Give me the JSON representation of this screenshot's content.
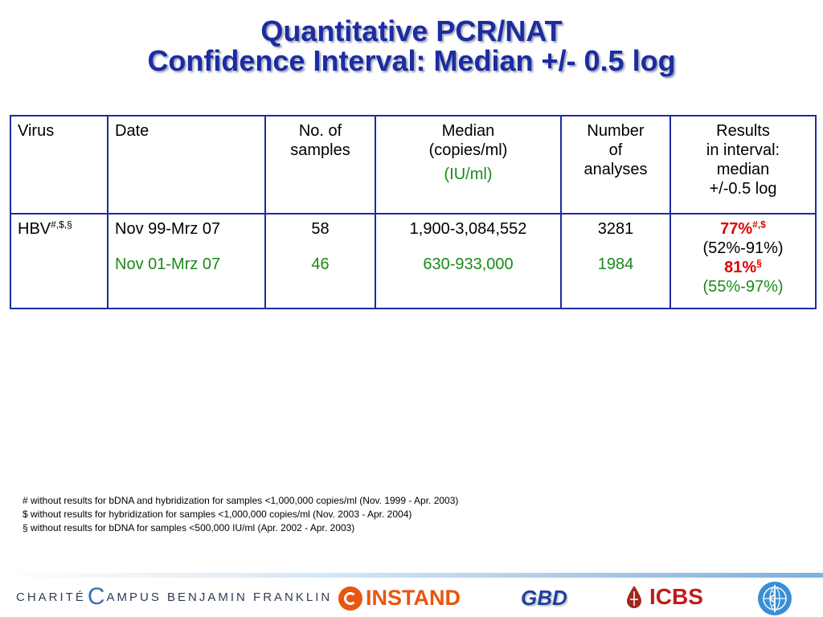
{
  "title": {
    "line1": "Quantitative PCR/NAT",
    "line2": "Confidence Interval: Median +/- 0.5 log"
  },
  "table": {
    "headers": {
      "virus": "Virus",
      "date": "Date",
      "samples": [
        "No. of",
        "samples"
      ],
      "median": [
        "Median",
        "(copies/ml)"
      ],
      "median_iu": "(IU/ml)",
      "analyses": [
        "Number",
        "of",
        "analyses"
      ],
      "results": [
        "Results",
        "in interval:",
        "median",
        "+/-0.5 log"
      ]
    },
    "row": {
      "virus": "HBV",
      "virus_sup": "#,$,§",
      "date_1": "Nov 99-Mrz 07",
      "date_2": "Nov 01-Mrz 07",
      "samples_1": "58",
      "samples_2": "46",
      "median_1": "1,900-3,084,552",
      "median_2": "630-933,000",
      "analyses_1": "3281",
      "analyses_2": "1984",
      "result_1": "77%",
      "result_1_sup": "#,$",
      "result_1_ci": "(52%-91%)",
      "result_2": "81%",
      "result_2_sup": "§",
      "result_2_ci": "(55%-97%)"
    }
  },
  "footnotes": [
    "# without results for bDNA and hybridization for samples <1,000,000 copies/ml (Nov. 1999 - Apr. 2003)",
    "$ without results for hybridization for samples <1,000,000 copies/ml (Nov. 2003 - Apr. 2004)",
    "§ without results for bDNA for samples <500,000 IU/ml (Apr. 2002 - Apr. 2003)"
  ],
  "logos": {
    "charite_1": "CHARITÉ",
    "charite_2": "AMPUS BENJAMIN FRANKLIN",
    "instand": "INSTAND",
    "gbd": "GBD",
    "icbs": "ICBS"
  },
  "colors": {
    "title": "#1b2da0",
    "table_border": "#1b2da0",
    "green": "#1a8a1a",
    "red": "#e00000"
  }
}
